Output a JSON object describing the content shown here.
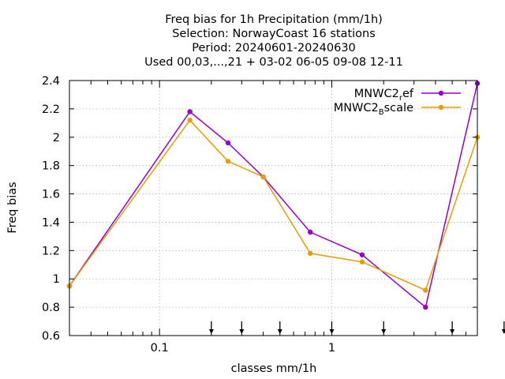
{
  "chart_data": {
    "type": "line",
    "title_lines": [
      "Freq bias  for 1h Precipitation (mm/1h)",
      "Selection: NorwayCoast     16 stations",
      "Period: 20240601-20240630",
      "Used 00,03,...,21 + 03-02 06-05 09-08 12-11"
    ],
    "xlabel": "classes mm/1h",
    "ylabel": "Freq bias",
    "x_scale": "log",
    "xlim": [
      0.03,
      7.0
    ],
    "ylim": [
      0.6,
      2.4
    ],
    "xticks": [
      {
        "value": 0.1,
        "label": "0.1"
      },
      {
        "value": 1,
        "label": "1"
      }
    ],
    "yticks": [
      {
        "value": 0.6,
        "label": "0.6"
      },
      {
        "value": 0.8,
        "label": "0.8"
      },
      {
        "value": 1.0,
        "label": "1"
      },
      {
        "value": 1.2,
        "label": "1.2"
      },
      {
        "value": 1.4,
        "label": "1.4"
      },
      {
        "value": 1.6,
        "label": "1.6"
      },
      {
        "value": 1.8,
        "label": "1.8"
      },
      {
        "value": 2.0,
        "label": "2"
      },
      {
        "value": 2.2,
        "label": "2.2"
      },
      {
        "value": 2.4,
        "label": "2.4"
      }
    ],
    "class_arrows_x": [
      0.2,
      0.3,
      0.5,
      1.0,
      2.0,
      5.0,
      10.0
    ],
    "grid": true,
    "legend_position": "top-right",
    "series": [
      {
        "name_main": "MNWC2",
        "name_sub": "r",
        "name_tail": "ef",
        "color": "#9400d3",
        "x": [
          0.03,
          0.15,
          0.25,
          0.4,
          0.75,
          1.5,
          3.5,
          7.0
        ],
        "y": [
          0.95,
          2.18,
          1.96,
          1.72,
          1.33,
          1.17,
          0.8,
          2.38
        ]
      },
      {
        "name_main": "MNWC2",
        "name_sub": "B",
        "name_tail": "scale",
        "color": "#e69f00",
        "x": [
          0.03,
          0.15,
          0.25,
          0.4,
          0.75,
          1.5,
          3.5,
          7.0
        ],
        "y": [
          0.95,
          2.12,
          1.83,
          1.72,
          1.18,
          1.12,
          0.92,
          2.0
        ]
      }
    ]
  }
}
